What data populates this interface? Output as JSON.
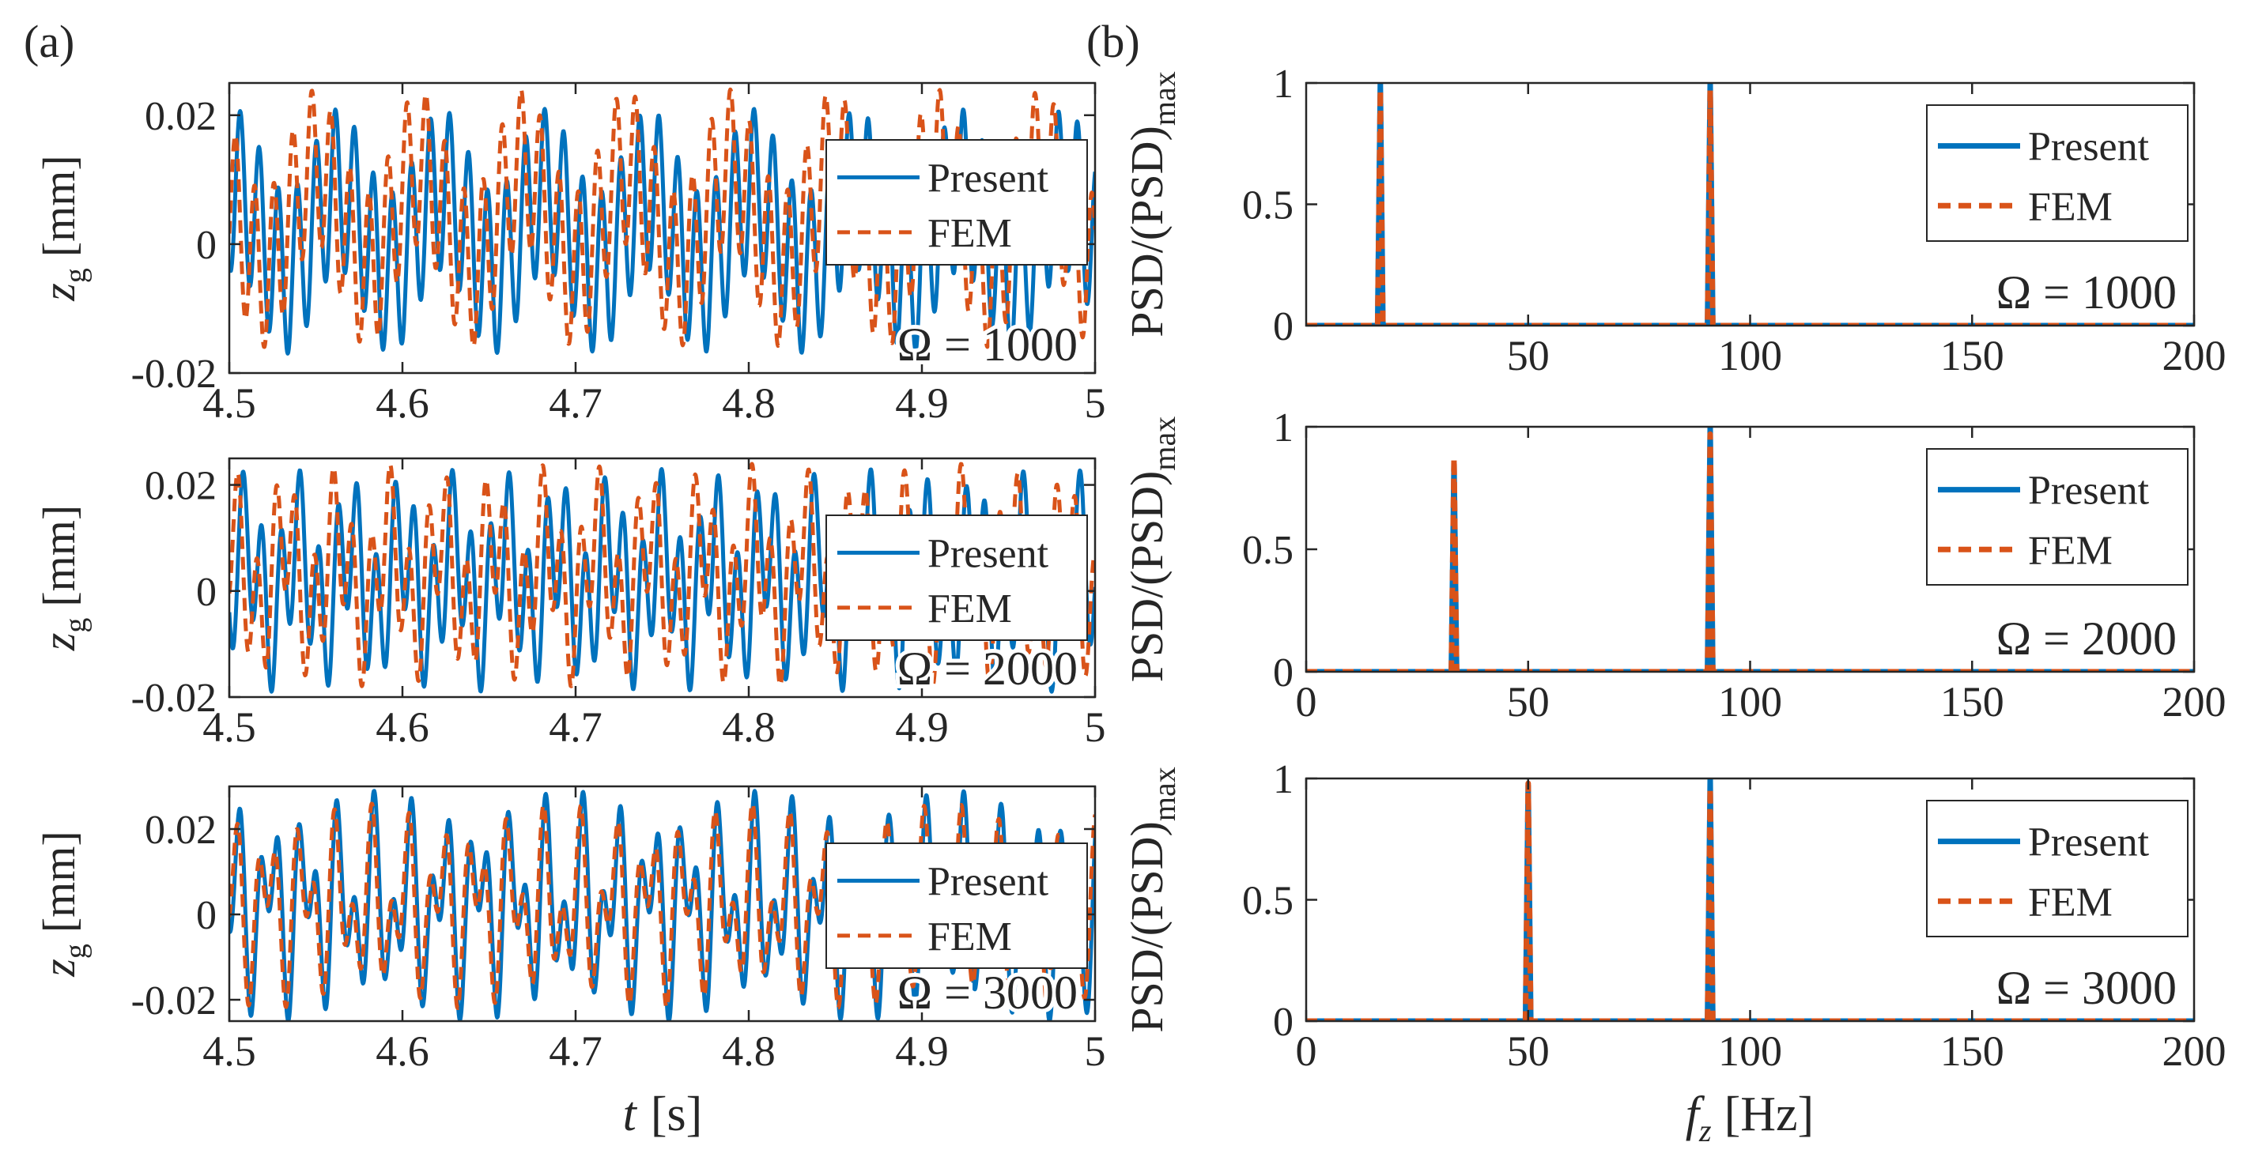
{
  "panel_labels": [
    "(a)",
    "(b)"
  ],
  "colors": {
    "present": "#0072BD",
    "fem": "#D95319",
    "axis": "#262626"
  },
  "legend": {
    "present": "Present",
    "fem": "FEM"
  },
  "left_axis": {
    "ylabel_sym": "z",
    "ylabel_sub": "g",
    "ylabel_unit": "[mm]",
    "xlabel_sym": "t",
    "xlabel_unit": "[s]"
  },
  "right_axis": {
    "ylabel_main": "PSD/(PSD)",
    "ylabel_sub": "max",
    "xlabel_sym": "f",
    "xlabel_sub": "z",
    "xlabel_unit": "[Hz]"
  },
  "chart_data": [
    {
      "type": "line",
      "panel": "a",
      "row": 0,
      "title": "",
      "annotation": "Ω = 1000",
      "xlim": [
        4.5,
        5.0
      ],
      "ylim": [
        -0.02,
        0.025
      ],
      "xticks": [
        4.5,
        4.6,
        4.7,
        4.8,
        4.9,
        5.0
      ],
      "xtick_labels": [
        "4.5",
        "4.6",
        "4.7",
        "4.8",
        "4.9",
        "5"
      ],
      "yticks": [
        -0.02,
        0,
        0.02
      ],
      "ytick_labels": [
        "-0.02",
        "0",
        "0.02"
      ],
      "legend_location": "top-right",
      "series": [
        {
          "name": "Present",
          "style": "solid",
          "signal": {
            "freqs": [
              16.7,
              91
            ],
            "amps": [
              0.0065,
              0.0125
            ],
            "phases": [
              0.3,
              1.1
            ],
            "offset": 0.002
          }
        },
        {
          "name": "FEM",
          "style": "dashed",
          "signal": {
            "freqs": [
              16.7,
              91
            ],
            "amps": [
              0.008,
              0.012
            ],
            "phases": [
              1.7,
              2.6
            ],
            "offset": 0.004
          }
        }
      ]
    },
    {
      "type": "line",
      "panel": "a",
      "row": 1,
      "title": "",
      "annotation": "Ω = 2000",
      "xlim": [
        4.5,
        5.0
      ],
      "ylim": [
        -0.02,
        0.025
      ],
      "xticks": [
        4.5,
        4.6,
        4.7,
        4.8,
        4.9,
        5.0
      ],
      "xtick_labels": [
        "4.5",
        "4.6",
        "4.7",
        "4.8",
        "4.9",
        "5"
      ],
      "yticks": [
        -0.02,
        0,
        0.02
      ],
      "ytick_labels": [
        "-0.02",
        "0",
        "0.02"
      ],
      "legend_location": "top-right",
      "series": [
        {
          "name": "Present",
          "style": "solid",
          "signal": {
            "freqs": [
              33.3,
              91
            ],
            "amps": [
              0.008,
              0.013
            ],
            "phases": [
              0.5,
              0.2
            ],
            "offset": 0.002
          }
        },
        {
          "name": "FEM",
          "style": "dashed",
          "signal": {
            "freqs": [
              33.3,
              91
            ],
            "amps": [
              0.009,
              0.012
            ],
            "phases": [
              2.1,
              1.8
            ],
            "offset": 0.003
          }
        }
      ]
    },
    {
      "type": "line",
      "panel": "a",
      "row": 2,
      "title": "",
      "annotation": "Ω = 3000",
      "xlim": [
        4.5,
        5.0
      ],
      "ylim": [
        -0.025,
        0.03
      ],
      "xticks": [
        4.5,
        4.6,
        4.7,
        4.8,
        4.9,
        5.0
      ],
      "xtick_labels": [
        "4.5",
        "4.6",
        "4.7",
        "4.8",
        "4.9",
        "5"
      ],
      "yticks": [
        -0.02,
        0,
        0.02
      ],
      "ytick_labels": [
        "-0.02",
        "0",
        "0.02"
      ],
      "legend_location": "top-right",
      "series": [
        {
          "name": "Present",
          "style": "solid",
          "signal": {
            "freqs": [
              50,
              91
            ],
            "amps": [
              0.013,
              0.014
            ],
            "phases": [
              0.4,
              0.9
            ],
            "offset": 0.002
          }
        },
        {
          "name": "FEM",
          "style": "dashed",
          "signal": {
            "freqs": [
              50,
              91
            ],
            "amps": [
              0.012,
              0.012
            ],
            "phases": [
              0.9,
              1.6
            ],
            "offset": 0.002
          }
        }
      ]
    },
    {
      "type": "line",
      "panel": "b",
      "row": 0,
      "title": "",
      "annotation": "Ω = 1000",
      "xlim": [
        0,
        200
      ],
      "ylim": [
        0,
        1.0
      ],
      "xticks": [
        50,
        100,
        150,
        200
      ],
      "xtick_labels": [
        "50",
        "100",
        "150",
        "200"
      ],
      "yticks": [
        0,
        0.5,
        1
      ],
      "ytick_labels": [
        "0",
        "0.5",
        "1"
      ],
      "legend_location": "top-right",
      "series": [
        {
          "name": "Present",
          "style": "solid",
          "peaks": [
            [
              16.7,
              1.0
            ],
            [
              91,
              1.0
            ]
          ]
        },
        {
          "name": "FEM",
          "style": "dashed",
          "peaks": [
            [
              16.7,
              0.97
            ],
            [
              91,
              0.97
            ]
          ]
        }
      ]
    },
    {
      "type": "line",
      "panel": "b",
      "row": 1,
      "title": "",
      "annotation": "Ω = 2000",
      "xlim": [
        0,
        200
      ],
      "ylim": [
        0,
        1.0
      ],
      "xticks": [
        0,
        50,
        100,
        150,
        200
      ],
      "xtick_labels": [
        "0",
        "50",
        "100",
        "150",
        "200"
      ],
      "yticks": [
        0,
        0.5,
        1
      ],
      "ytick_labels": [
        "0",
        "0.5",
        "1"
      ],
      "legend_location": "top-right",
      "series": [
        {
          "name": "Present",
          "style": "solid",
          "peaks": [
            [
              33.3,
              0.85
            ],
            [
              91,
              1.0
            ]
          ]
        },
        {
          "name": "FEM",
          "style": "dashed",
          "peaks": [
            [
              33.3,
              0.87
            ],
            [
              91,
              0.97
            ]
          ]
        }
      ]
    },
    {
      "type": "line",
      "panel": "b",
      "row": 2,
      "title": "",
      "annotation": "Ω = 3000",
      "xlim": [
        0,
        200
      ],
      "ylim": [
        0,
        1.0
      ],
      "xticks": [
        0,
        50,
        100,
        150,
        200
      ],
      "xtick_labels": [
        "0",
        "50",
        "100",
        "150",
        "200"
      ],
      "yticks": [
        0,
        0.5,
        1
      ],
      "ytick_labels": [
        "0",
        "0.5",
        "1"
      ],
      "legend_location": "top-right",
      "series": [
        {
          "name": "Present",
          "style": "solid",
          "peaks": [
            [
              50,
              0.97
            ],
            [
              91,
              1.0
            ]
          ]
        },
        {
          "name": "FEM",
          "style": "dashed",
          "peaks": [
            [
              50,
              0.98
            ],
            [
              91,
              0.96
            ]
          ]
        }
      ]
    }
  ]
}
